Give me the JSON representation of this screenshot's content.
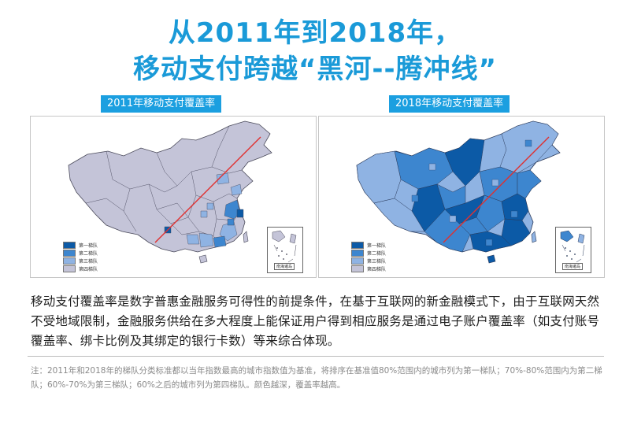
{
  "title": {
    "line1": "从2011年到2018年，",
    "line2": "移动支付跨越“黑河--腾冲线”"
  },
  "maps": [
    {
      "label": "2011年移动支付覆盖率",
      "legend": [
        "第一梯队",
        "第二梯队",
        "第三梯队",
        "第四梯队"
      ],
      "inset_label": "南海诸岛"
    },
    {
      "label": "2018年移动支付覆盖率",
      "legend": [
        "第一梯队",
        "第二梯队",
        "第三梯队",
        "第四梯队"
      ],
      "inset_label": "南海诸岛"
    }
  ],
  "colors": {
    "title": "#1a9ad8",
    "tier1": "#0c5aa6",
    "tier2": "#3d86cf",
    "tier3": "#8fb3e3",
    "tier4": "#c4c4d8",
    "line": "#e03030"
  },
  "body": "移动支付覆盖率是数字普惠金融服务可得性的前提条件，在基于互联网的新金融模式下，由于互联网天然不受地域限制，金融服务供给在多大程度上能保证用户得到相应服务是通过电子账户覆盖率（如支付账号覆盖率、绑卡比例及其绑定的银行卡数）等来综合体现。",
  "note": "注：2011年和2018年的梯队分类标准都以当年指数最高的城市指数值为基准，将排序在基准值80%范围内的城市列为第一梯队；70%-80%范围内为第二梯队；60%-70%为第三梯队；60%之后的城市列为第四梯队。颜色越深，覆盖率越高。"
}
